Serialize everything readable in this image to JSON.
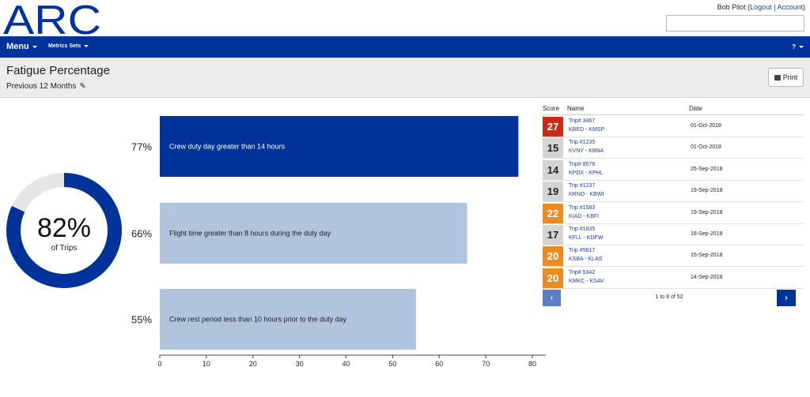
{
  "app": {
    "logo_text": "ARC"
  },
  "user": {
    "name": "Bob Pilot",
    "logout": "Logout",
    "account": "Account"
  },
  "search": {
    "placeholder": ""
  },
  "nav": {
    "menu": "Menu",
    "metrics_sets": "Metrics Sets",
    "help": "?"
  },
  "page": {
    "title": "Fatigue Percentage",
    "subtitle": "Previous 12 Months",
    "print": "Print"
  },
  "summary": {
    "value": "82%",
    "fraction": 0.82,
    "label": "of Trips"
  },
  "colors": {
    "primary": "#003399",
    "bar_light": "#b0c4de",
    "donut_track": "#e6e6e6",
    "score_red": "#cc2a18",
    "score_orange": "#ea8c20",
    "score_gray": "#d4d4d4"
  },
  "chart_data": {
    "type": "bar",
    "orientation": "horizontal",
    "categories": [
      "Crew duty day greater than 14 hours",
      "Flight time greater than 8 hours during the duty day",
      "Crew rest period less than 10 hours prior to the duty day"
    ],
    "values": [
      77,
      66,
      55
    ],
    "value_labels": [
      "77%",
      "66%",
      "55%"
    ],
    "highlighted_index": 0,
    "xlim": [
      0,
      80
    ],
    "xticks": [
      "0",
      "10",
      "20",
      "30",
      "40",
      "50",
      "60",
      "70",
      "80"
    ]
  },
  "table": {
    "headers": {
      "score": "Score",
      "name": "Name",
      "date": "Date"
    },
    "rows": [
      {
        "score": "27",
        "level": "red",
        "trip": "Trip# 3467",
        "route": "KBED - KMSP",
        "date": "01-Oct-2018"
      },
      {
        "score": "15",
        "level": "gray",
        "trip": "Trip #1235",
        "route": "KVNY - KBNA",
        "date": "01-Oct-2018"
      },
      {
        "score": "14",
        "level": "gray",
        "trip": "Trip# 8576",
        "route": "KPDX - KPHL",
        "date": "25-Sep-2018"
      },
      {
        "score": "19",
        "level": "gray",
        "trip": "Trip #1237",
        "route": "KRNO - KBWI",
        "date": "19-Sep-2018"
      },
      {
        "score": "22",
        "level": "orange",
        "trip": "Trip #1583",
        "route": "KIAD - KBFI",
        "date": "19-Sep-2018"
      },
      {
        "score": "17",
        "level": "gray",
        "trip": "Trip #1835",
        "route": "KFLL - KDFW",
        "date": "18-Sep-2018"
      },
      {
        "score": "20",
        "level": "orange",
        "trip": "Trip #5617",
        "route": "KSBA - KLAS",
        "date": "15-Sep-2018"
      },
      {
        "score": "20",
        "level": "orange",
        "trip": "Trip# 5342",
        "route": "KMKC - KSAV",
        "date": "14-Sep-2018"
      }
    ],
    "pagination": {
      "info": "1 to 8 of 52",
      "prev": "‹",
      "next": "›"
    }
  }
}
